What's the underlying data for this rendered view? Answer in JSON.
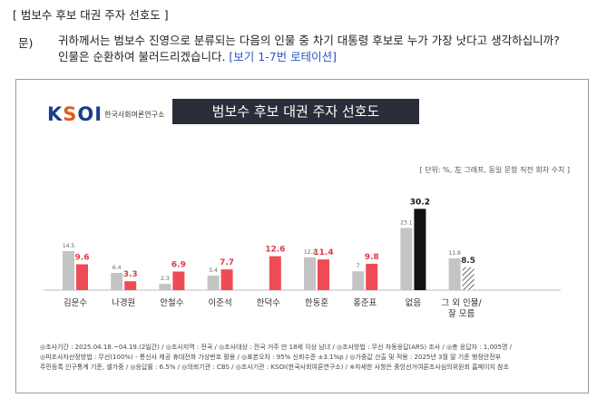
{
  "header": {
    "section_title": "[ 범보수 후보 대권 주자 선호도 ]",
    "question_label": "문)",
    "question_line1": "귀하께서는 범보수 진영으로 분류되는 다음의 인물 중 차기 대통령 후보로 누가 가장 낫다고 생각하십니까?",
    "question_line2": "인물은 순환하여 불러드리겠습니다.",
    "rotation_note": "[보기 1-7번 로테이션]"
  },
  "panel": {
    "logo_text": "KSOI",
    "logo_sub": "한국사회여론연구소",
    "title": "범보수 후보 대권 주자 선호도",
    "unit_note": "[ 단위: %, 左 그래프, 동일 문항 직전 회차 수치 ]"
  },
  "chart_data": {
    "type": "bar",
    "title": "범보수 후보 대권 주자 선호도",
    "categories": [
      "김문수",
      "나경원",
      "안철수",
      "이준석",
      "한덕수",
      "한동훈",
      "홍준표",
      "없음",
      "그 외 인물/ 잘 모름"
    ],
    "series": [
      {
        "values": [
          14.5,
          6.4,
          2.3,
          5.4,
          null,
          12.2,
          7.0,
          23.1,
          11.8
        ]
      },
      {
        "values": [
          9.6,
          3.3,
          6.9,
          7.7,
          12.6,
          11.4,
          9.8,
          30.2,
          8.5
        ]
      }
    ],
    "ylim": [
      0,
      32
    ],
    "colors": {
      "previous": "#c4c4c4",
      "current": "#ef4b55",
      "none_current": "#111111",
      "other_current": "hatched"
    }
  },
  "footer": {
    "line1": "◎조사기간 : 2025.04.18.~04.19.(2일간) / ◎조사지역 : 전국 / ◎조사대상 : 전국 거주 만 18세 이상 남녀 / ◎조사방법 : 무선 자동응답(ARS) 조사 / ◎총 응답자 : 1,005명 /",
    "line2": "◎피조사자선정방법 : 무선(100%) - 통신사 제공 휴대전화 가상번호 활용 / ◎표본오차 : 95% 신뢰수준 ±3.1%p / ◎가중값 산출 및 적용 : 2025년 3월 말 기준 행정안전부",
    "line3": "주민등록 인구통계 기준, 셀가중 / ◎응답률 : 6.5% / ◎의뢰기관 : CBS / ◎조사기관 : KSOI(한국사회여론연구소) / ※자세한 사항은 중앙선거여론조사심의위원회 홈페이지 참조"
  }
}
